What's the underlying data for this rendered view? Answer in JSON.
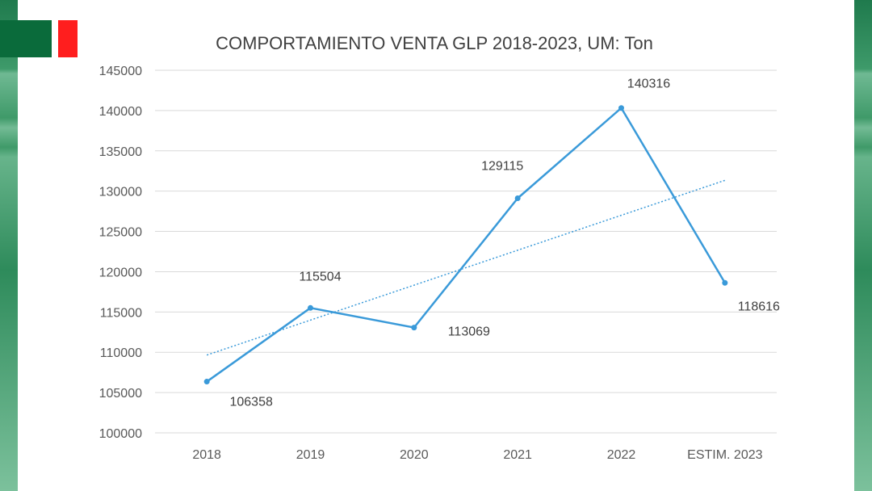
{
  "chart_data": {
    "type": "line",
    "title": "COMPORTAMIENTO VENTA GLP 2018-2023, UM: Ton",
    "xlabel": "",
    "ylabel": "",
    "categories": [
      "2018",
      "2019",
      "2020",
      "2021",
      "2022",
      "ESTIM. 2023"
    ],
    "series": [
      {
        "values": [
          106358,
          115504,
          113069,
          129115,
          140316,
          118616
        ]
      }
    ],
    "data_labels": [
      "106358",
      "115504",
      "113069",
      "129115",
      "140316",
      "118616"
    ],
    "y_ticks": [
      "100000",
      "105000",
      "110000",
      "115000",
      "120000",
      "125000",
      "130000",
      "135000",
      "140000",
      "145000"
    ],
    "ylim": [
      100000,
      145000
    ],
    "trendline": {
      "type": "linear",
      "style": "dotted"
    },
    "grid": true,
    "legend": "none",
    "colors": {
      "line": "#3a9ad9",
      "trend": "#3a9ad9",
      "grid": "#d9d9d9"
    }
  },
  "decor": {
    "brand_colors": {
      "green": "#0a6b3b",
      "red": "#ff1e1e",
      "band": "#3f9a69"
    }
  }
}
